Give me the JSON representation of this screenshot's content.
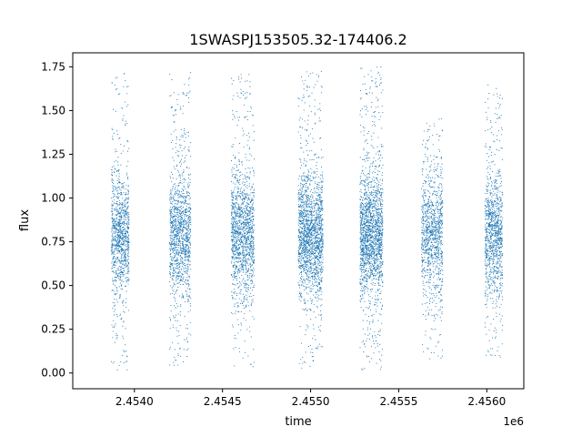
{
  "chart_data": {
    "type": "scatter",
    "title": "1SWASPJ153505.32-174406.2",
    "xlabel": "time",
    "ylabel": "flux",
    "x_offset_label": "1e6",
    "xlim": [
      2.45365,
      2.45621
    ],
    "ylim": [
      -0.09,
      1.83
    ],
    "x_ticks": [
      {
        "value": 2.454,
        "label": "2.4540"
      },
      {
        "value": 2.4545,
        "label": "2.4545"
      },
      {
        "value": 2.455,
        "label": "2.4550"
      },
      {
        "value": 2.4555,
        "label": "2.4555"
      },
      {
        "value": 2.456,
        "label": "2.4560"
      }
    ],
    "y_ticks": [
      {
        "value": 0.0,
        "label": "0.00"
      },
      {
        "value": 0.25,
        "label": "0.25"
      },
      {
        "value": 0.5,
        "label": "0.50"
      },
      {
        "value": 0.75,
        "label": "0.75"
      },
      {
        "value": 1.0,
        "label": "1.00"
      },
      {
        "value": 1.25,
        "label": "1.25"
      },
      {
        "value": 1.5,
        "label": "1.50"
      },
      {
        "value": 1.75,
        "label": "1.75"
      }
    ],
    "grid": false,
    "marker_color": "#1f77b4",
    "series": [
      {
        "seasons": [
          {
            "x_start": 2.45387,
            "x_end": 2.45397,
            "flux_center": 0.79,
            "flux_min": 0.01,
            "flux_max": 1.72,
            "density": 0.6
          },
          {
            "x_start": 2.4542,
            "x_end": 2.45432,
            "flux_center": 0.78,
            "flux_min": 0.01,
            "flux_max": 1.72,
            "density": 0.7
          },
          {
            "x_start": 2.45455,
            "x_end": 2.45468,
            "flux_center": 0.8,
            "flux_min": 0.02,
            "flux_max": 1.71,
            "density": 0.8
          },
          {
            "x_start": 2.45493,
            "x_end": 2.45507,
            "flux_center": 0.79,
            "flux_min": 0.02,
            "flux_max": 1.73,
            "density": 1.0
          },
          {
            "x_start": 2.45528,
            "x_end": 2.45541,
            "flux_center": 0.79,
            "flux_min": 0.0,
            "flux_max": 1.75,
            "density": 1.0
          },
          {
            "x_start": 2.45563,
            "x_end": 2.45575,
            "flux_center": 0.79,
            "flux_min": 0.08,
            "flux_max": 1.46,
            "density": 0.6
          },
          {
            "x_start": 2.45599,
            "x_end": 2.45609,
            "flux_center": 0.78,
            "flux_min": 0.08,
            "flux_max": 1.65,
            "density": 0.6
          }
        ]
      }
    ]
  }
}
